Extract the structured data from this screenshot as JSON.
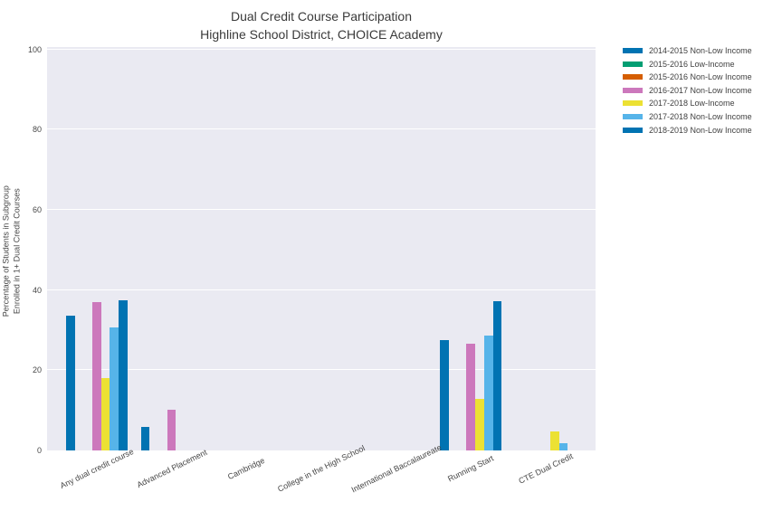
{
  "title": {
    "line1": "Dual Credit Course Participation",
    "line2": "Highline School District, CHOICE Academy"
  },
  "y_axis": {
    "label_line1": "Percentage of Students in Subgroup",
    "label_line2": "Enrolled in 1+ Dual Credit Courses",
    "ticks": [
      0,
      20,
      40,
      60,
      80,
      100
    ]
  },
  "colors": {
    "plot_background": "#eaeaf2",
    "gridline": "#ffffff",
    "title_text": "#3a3a3a",
    "tick_text": "#474747",
    "legend_text": "#3f3f3f"
  },
  "chart_data": {
    "type": "bar",
    "title": "Dual Credit Course Participation",
    "subtitle": "Highline School District, CHOICE Academy",
    "xlabel": "",
    "ylabel": "Percentage of Students in Subgroup Enrolled in 1+ Dual Credit Courses",
    "ylim": [
      0,
      100
    ],
    "grid": true,
    "legend_position": "upper-right-outside",
    "categories": [
      "Any dual credit course",
      "Advanced Placement",
      "Cambridge",
      "College in the High School",
      "International Baccalaureate",
      "Running Start",
      "CTE Dual Credit"
    ],
    "series": [
      {
        "name": "2014-2015 Non-Low Income",
        "color": "#0173b2",
        "values": [
          33.5,
          5.8,
          0,
          0,
          0,
          27.5,
          0
        ]
      },
      {
        "name": "2015-2016 Low-Income",
        "color": "#029e73",
        "values": [
          0,
          0,
          0,
          0,
          0,
          0,
          0
        ]
      },
      {
        "name": "2015-2016 Non-Low Income",
        "color": "#d55e00",
        "values": [
          0,
          0,
          0,
          0,
          0,
          0,
          0
        ]
      },
      {
        "name": "2016-2017 Non-Low Income",
        "color": "#cc78bc",
        "values": [
          37.0,
          10.1,
          0,
          0,
          0,
          26.6,
          0
        ]
      },
      {
        "name": "2017-2018 Low-Income",
        "color": "#ece133",
        "values": [
          18.0,
          0,
          0,
          0,
          0,
          12.8,
          4.8
        ]
      },
      {
        "name": "2017-2018 Non-Low Income",
        "color": "#56b4e9",
        "values": [
          30.6,
          0,
          0,
          0,
          0,
          28.7,
          1.7
        ]
      },
      {
        "name": "2018-2019 Non-Low Income",
        "color": "#0173b2",
        "values": [
          37.4,
          0,
          0,
          0,
          0,
          37.2,
          0
        ]
      }
    ]
  }
}
